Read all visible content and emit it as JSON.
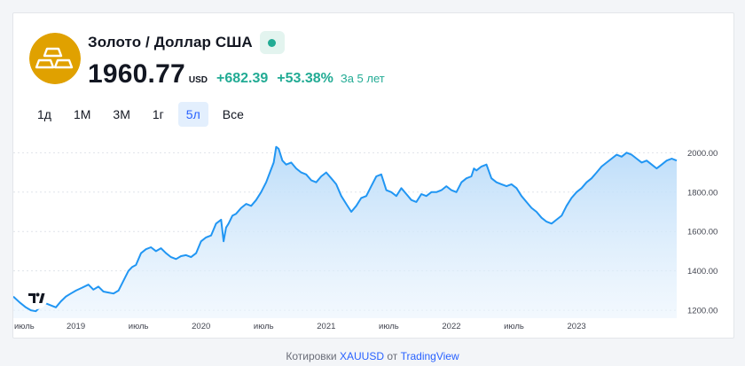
{
  "header": {
    "title": "Золото / Доллар США",
    "price": "1960.77",
    "currency": "USD",
    "change": "+682.39",
    "change_pct": "+53.38%",
    "period_label": "За 5 лет",
    "accent_color": "#22ab94",
    "logo_color": "#e0a100",
    "logo_icon": "gold-bars-icon",
    "status_icon": "market-open-dot-icon"
  },
  "tabs": [
    {
      "label": "1д",
      "active": false
    },
    {
      "label": "1М",
      "active": false
    },
    {
      "label": "3М",
      "active": false
    },
    {
      "label": "1г",
      "active": false
    },
    {
      "label": "5л",
      "active": true
    },
    {
      "label": "Все",
      "active": false
    }
  ],
  "chart_data": {
    "type": "area",
    "line_color": "#2196f3",
    "fill_color": "#cfe6fb",
    "grid": true,
    "y_ticks": [
      1200,
      1400,
      1600,
      1800,
      2000
    ],
    "y_tick_labels": [
      "1200.00",
      "1400.00",
      "1600.00",
      "1800.00",
      "2000.00"
    ],
    "ylim": [
      1160,
      2060
    ],
    "x_ticks": [
      {
        "label": "июль",
        "t": 2018.5
      },
      {
        "label": "2019",
        "t": 2019.0
      },
      {
        "label": "июль",
        "t": 2019.5
      },
      {
        "label": "2020",
        "t": 2020.0
      },
      {
        "label": "июль",
        "t": 2020.5
      },
      {
        "label": "2021",
        "t": 2021.0
      },
      {
        "label": "июль",
        "t": 2021.5
      },
      {
        "label": "2022",
        "t": 2022.0
      },
      {
        "label": "июль",
        "t": 2022.5
      },
      {
        "label": "2023",
        "t": 2023.0
      }
    ],
    "xlim": [
      2018.5,
      2023.8
    ],
    "series": [
      {
        "t": [
          2018.5,
          2018.55,
          2018.6,
          2018.64,
          2018.68,
          2018.72,
          2018.76,
          2018.8,
          2018.84,
          2018.88,
          2018.92,
          2018.96,
          2019.0,
          2019.05,
          2019.1,
          2019.14,
          2019.18,
          2019.22,
          2019.26,
          2019.3,
          2019.34,
          2019.38,
          2019.42,
          2019.45,
          2019.48,
          2019.52,
          2019.56,
          2019.6,
          2019.64,
          2019.68,
          2019.72,
          2019.76,
          2019.8,
          2019.84,
          2019.88,
          2019.92,
          2019.96,
          2020.0,
          2020.04,
          2020.08,
          2020.12,
          2020.16,
          2020.18,
          2020.2,
          2020.22,
          2020.25,
          2020.28,
          2020.32,
          2020.36,
          2020.4,
          2020.44,
          2020.48,
          2020.52,
          2020.55,
          2020.58,
          2020.6,
          2020.62,
          2020.65,
          2020.68,
          2020.72,
          2020.76,
          2020.8,
          2020.84,
          2020.88,
          2020.92,
          2020.96,
          2021.0,
          2021.04,
          2021.08,
          2021.12,
          2021.16,
          2021.2,
          2021.24,
          2021.28,
          2021.32,
          2021.36,
          2021.4,
          2021.44,
          2021.48,
          2021.52,
          2021.56,
          2021.6,
          2021.64,
          2021.68,
          2021.72,
          2021.76,
          2021.8,
          2021.84,
          2021.88,
          2021.92,
          2021.96,
          2022.0,
          2022.04,
          2022.08,
          2022.12,
          2022.16,
          2022.18,
          2022.2,
          2022.24,
          2022.28,
          2022.32,
          2022.36,
          2022.4,
          2022.44,
          2022.48,
          2022.52,
          2022.56,
          2022.6,
          2022.64,
          2022.68,
          2022.72,
          2022.76,
          2022.8,
          2022.84,
          2022.88,
          2022.92,
          2022.96,
          2023.0,
          2023.04,
          2023.08,
          2023.12,
          2023.16,
          2023.2,
          2023.24,
          2023.28,
          2023.32,
          2023.36,
          2023.4,
          2023.44,
          2023.48,
          2023.52,
          2023.56,
          2023.6,
          2023.64,
          2023.68,
          2023.72,
          2023.76,
          2023.8
        ],
        "values": [
          1270,
          1240,
          1215,
          1200,
          1195,
          1220,
          1235,
          1225,
          1215,
          1245,
          1270,
          1285,
          1300,
          1315,
          1330,
          1305,
          1320,
          1295,
          1290,
          1285,
          1300,
          1350,
          1400,
          1420,
          1430,
          1490,
          1510,
          1520,
          1500,
          1515,
          1490,
          1470,
          1460,
          1475,
          1480,
          1470,
          1490,
          1550,
          1570,
          1580,
          1640,
          1660,
          1550,
          1620,
          1640,
          1680,
          1690,
          1720,
          1740,
          1730,
          1760,
          1800,
          1850,
          1900,
          1950,
          2030,
          2020,
          1960,
          1940,
          1950,
          1920,
          1900,
          1890,
          1860,
          1850,
          1880,
          1900,
          1870,
          1840,
          1780,
          1740,
          1700,
          1730,
          1770,
          1780,
          1830,
          1880,
          1890,
          1810,
          1800,
          1780,
          1820,
          1790,
          1760,
          1750,
          1790,
          1780,
          1800,
          1800,
          1810,
          1830,
          1810,
          1800,
          1850,
          1870,
          1880,
          1920,
          1910,
          1930,
          1940,
          1870,
          1850,
          1840,
          1830,
          1840,
          1820,
          1780,
          1750,
          1720,
          1700,
          1670,
          1650,
          1640,
          1660,
          1680,
          1730,
          1770,
          1800,
          1820,
          1850,
          1870,
          1900,
          1930,
          1950,
          1970,
          1990,
          1980,
          2000,
          1990,
          1970,
          1950,
          1960,
          1940,
          1920,
          1940,
          1960,
          1970,
          1960
        ]
      }
    ]
  },
  "footer": {
    "prefix": "Котировки",
    "link": "XAUUSD",
    "middle": "от",
    "source": "TradingView"
  }
}
